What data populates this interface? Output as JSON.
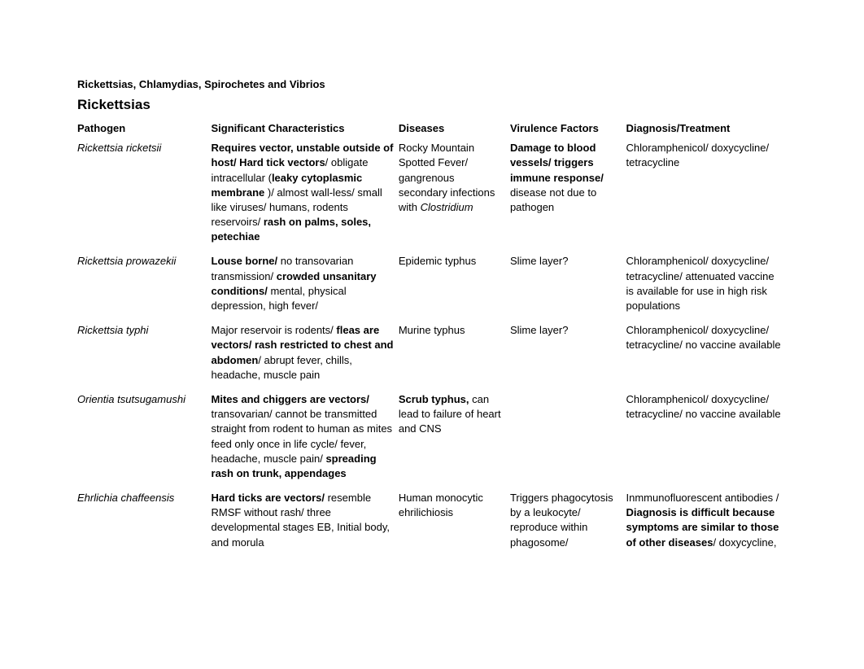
{
  "title": "Rickettsias, Chlamydias, Spirochetes and Vibrios",
  "section": "Rickettsias",
  "headers": {
    "pathogen": "Pathogen",
    "characteristics": "Significant Characteristics",
    "diseases": "Diseases",
    "virulence": "Virulence Factors",
    "diagnosis": "Diagnosis/Treatment"
  },
  "rows": [
    {
      "pathogen_italic": "Rickettsia ricketsii",
      "char_segments": [
        {
          "t": "Requires vector, unstable outside of host/ Hard tick vectors",
          "b": true
        },
        {
          "t": "/ obligate intracellular (",
          "b": false
        },
        {
          "t": "leaky cytoplasmic membrane",
          "b": true
        },
        {
          "t": " )/ almost wall-less/ small like viruses/ humans, rodents reservoirs/ ",
          "b": false
        },
        {
          "t": "rash on palms, soles, petechiae",
          "b": true
        }
      ],
      "disease_segments": [
        {
          "t": "Rocky Mountain Spotted Fever/ gangrenous secondary infections with ",
          "b": false,
          "i": false
        },
        {
          "t": "Clostridium",
          "b": false,
          "i": true
        }
      ],
      "virulence_segments": [
        {
          "t": "Damage to blood vessels/ triggers immune response/",
          "b": true
        },
        {
          "t": " disease not due to pathogen",
          "b": false
        }
      ],
      "diag_segments": [
        {
          "t": "Chloramphenicol/ doxycycline/ tetracycline",
          "b": false
        }
      ]
    },
    {
      "pathogen_italic": "Rickettsia prowazekii",
      "char_segments": [
        {
          "t": "Louse borne/",
          "b": true
        },
        {
          "t": " no transovarian transmission/ ",
          "b": false
        },
        {
          "t": "crowded unsanitary conditions/",
          "b": true
        },
        {
          "t": " mental, physical depression, high fever/",
          "b": false
        }
      ],
      "disease_segments": [
        {
          "t": "Epidemic typhus",
          "b": false
        }
      ],
      "virulence_segments": [
        {
          "t": "Slime layer?",
          "b": false
        }
      ],
      "diag_segments": [
        {
          "t": "Chloramphenicol/ doxycycline/ tetracycline/ attenuated vaccine is available for use in high risk populations",
          "b": false
        }
      ]
    },
    {
      "pathogen_italic": "Rickettsia typhi",
      "char_segments": [
        {
          "t": "Major reservoir is rodents/ ",
          "b": false
        },
        {
          "t": "fleas are vectors/ rash restricted to chest and abdomen",
          "b": true
        },
        {
          "t": "/ abrupt fever, chills, headache, muscle pain",
          "b": false
        }
      ],
      "disease_segments": [
        {
          "t": "Murine typhus",
          "b": false
        }
      ],
      "virulence_segments": [
        {
          "t": "Slime layer?",
          "b": false
        }
      ],
      "diag_segments": [
        {
          "t": "Chloramphenicol/ doxycycline/ tetracycline/ no vaccine available",
          "b": false
        }
      ]
    },
    {
      "pathogen_italic": "Orientia tsutsugamushi",
      "char_segments": [
        {
          "t": "Mites and chiggers are vectors/",
          "b": true
        },
        {
          "t": " transovarian/ cannot be transmitted straight from rodent to human as mites feed only once in life cycle/ fever, headache, muscle pain/ ",
          "b": false
        },
        {
          "t": "spreading rash on trunk, appendages",
          "b": true
        }
      ],
      "disease_segments": [
        {
          "t": "Scrub typhus,",
          "b": true
        },
        {
          "t": " can lead to failure of heart and CNS",
          "b": false
        }
      ],
      "virulence_segments": [],
      "diag_segments": [
        {
          "t": "Chloramphenicol/ doxycycline/ tetracycline/ no vaccine available",
          "b": false
        }
      ]
    },
    {
      "pathogen_italic": "Ehrlichia chaffeensis",
      "char_segments": [
        {
          "t": "Hard ticks are vectors/",
          "b": true
        },
        {
          "t": " resemble RMSF without rash/ three developmental stages EB, Initial body, and morula",
          "b": false
        }
      ],
      "disease_segments": [
        {
          "t": "Human monocytic ehrilichiosis",
          "b": false
        }
      ],
      "virulence_segments": [
        {
          "t": "Triggers phagocytosis by a leukocyte/ reproduce within phagosome/",
          "b": false
        }
      ],
      "diag_segments": [
        {
          "t": "Inmmunofluorescent antibodies / ",
          "b": false
        },
        {
          "t": "Diagnosis is difficult because symptoms are similar to those of other diseases",
          "b": true
        },
        {
          "t": "/ doxycycline,",
          "b": false
        }
      ]
    }
  ]
}
